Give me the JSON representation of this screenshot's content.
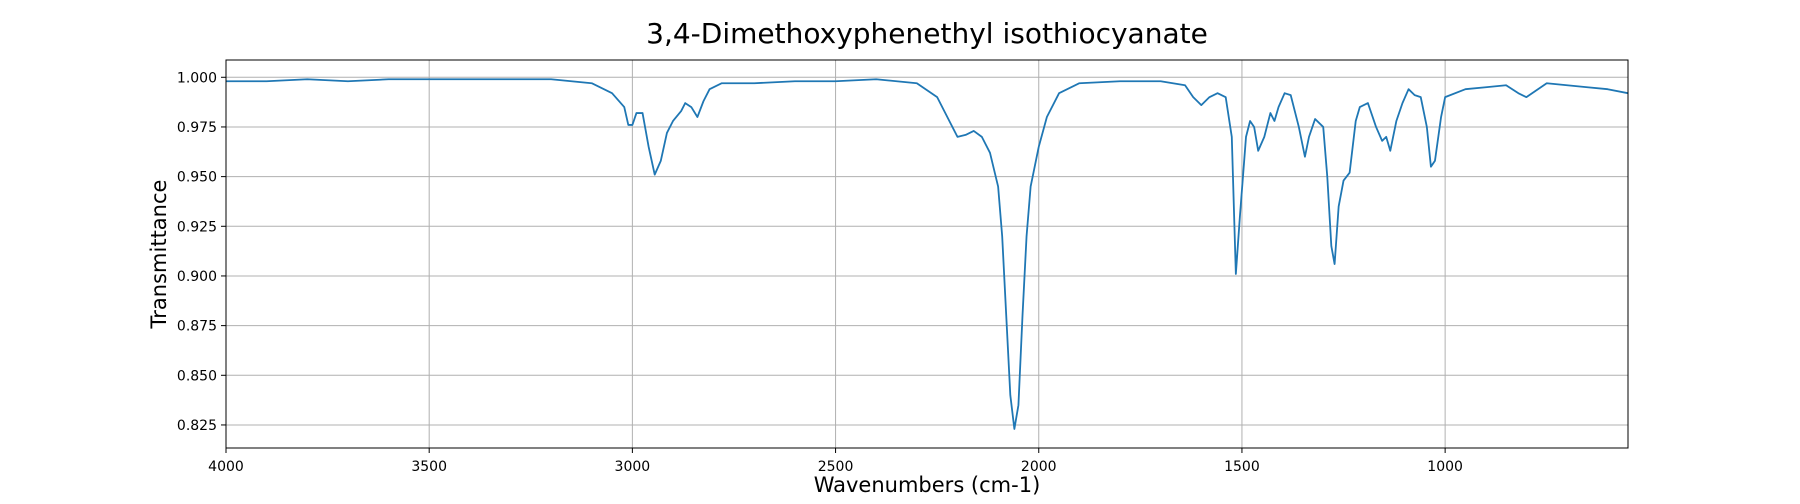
{
  "chart_data": {
    "type": "line",
    "title": "3,4-Dimethoxyphenethyl isothiocyanate",
    "x_label": "Wavenumbers (cm-1)",
    "y_label": "Transmittance",
    "grid": true,
    "xlim": [
      4000,
      550
    ],
    "ylim": [
      0.8134,
      1.0087
    ],
    "xticks": [
      4000,
      3500,
      3000,
      2500,
      2000,
      1500,
      1000
    ],
    "yticks": [
      0.825,
      {
        "value": 0.85,
        "label": "0.850"
      },
      0.875,
      {
        "value": 0.9,
        "label": "0.900"
      },
      0.925,
      {
        "value": 0.95,
        "label": "0.950"
      },
      0.975,
      {
        "value": 1,
        "label": "1.000"
      }
    ],
    "series": [
      {
        "color": "#1f77b4",
        "x": [
          4000,
          3900,
          3800,
          3700,
          3600,
          3500,
          3400,
          3300,
          3200,
          3100,
          3050,
          3020,
          3010,
          3000,
          2990,
          2975,
          2960,
          2945,
          2930,
          2915,
          2900,
          2880,
          2870,
          2855,
          2840,
          2825,
          2810,
          2780,
          2700,
          2600,
          2500,
          2400,
          2300,
          2250,
          2220,
          2200,
          2180,
          2160,
          2140,
          2120,
          2100,
          2090,
          2080,
          2070,
          2060,
          2050,
          2040,
          2030,
          2020,
          2000,
          1980,
          1950,
          1900,
          1800,
          1700,
          1640,
          1620,
          1600,
          1580,
          1560,
          1540,
          1525,
          1515,
          1505,
          1490,
          1480,
          1470,
          1460,
          1445,
          1430,
          1420,
          1410,
          1395,
          1380,
          1360,
          1345,
          1335,
          1320,
          1300,
          1290,
          1280,
          1272,
          1262,
          1250,
          1235,
          1220,
          1210,
          1190,
          1170,
          1155,
          1145,
          1135,
          1120,
          1105,
          1090,
          1075,
          1060,
          1045,
          1035,
          1025,
          1010,
          1000,
          950,
          900,
          850,
          820,
          800,
          750,
          700,
          650,
          600,
          550
        ],
        "values": [
          0.998,
          0.998,
          0.999,
          0.998,
          0.999,
          0.999,
          0.999,
          0.999,
          0.999,
          0.997,
          0.992,
          0.985,
          0.976,
          0.976,
          0.982,
          0.982,
          0.965,
          0.951,
          0.958,
          0.972,
          0.978,
          0.983,
          0.987,
          0.985,
          0.98,
          0.988,
          0.994,
          0.997,
          0.997,
          0.998,
          0.998,
          0.999,
          0.997,
          0.99,
          0.978,
          0.97,
          0.971,
          0.973,
          0.97,
          0.962,
          0.945,
          0.92,
          0.88,
          0.84,
          0.823,
          0.835,
          0.88,
          0.92,
          0.945,
          0.965,
          0.98,
          0.992,
          0.997,
          0.998,
          0.998,
          0.996,
          0.99,
          0.986,
          0.99,
          0.992,
          0.99,
          0.97,
          0.901,
          0.93,
          0.97,
          0.978,
          0.975,
          0.963,
          0.97,
          0.982,
          0.978,
          0.985,
          0.992,
          0.991,
          0.975,
          0.96,
          0.97,
          0.979,
          0.975,
          0.95,
          0.915,
          0.906,
          0.935,
          0.948,
          0.952,
          0.978,
          0.985,
          0.987,
          0.975,
          0.968,
          0.97,
          0.963,
          0.978,
          0.987,
          0.994,
          0.991,
          0.99,
          0.975,
          0.955,
          0.958,
          0.98,
          0.99,
          0.994,
          0.995,
          0.996,
          0.992,
          0.99,
          0.997,
          0.996,
          0.995,
          0.994,
          0.992
        ]
      }
    ]
  }
}
